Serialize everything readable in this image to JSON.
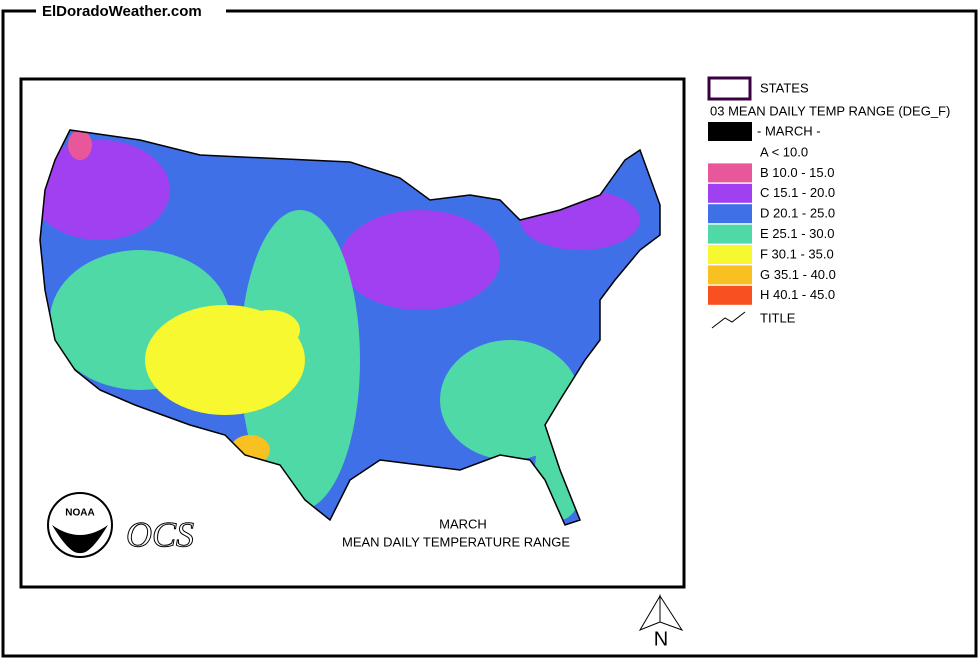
{
  "header": {
    "site": "ElDoradoWeather.com"
  },
  "legend": {
    "states": "STATES",
    "title": "03 MEAN DAILY TEMP RANGE (DEG_F)",
    "month": "- MARCH -",
    "items": [
      {
        "label": "A  < 10.0",
        "color": "#ffffff"
      },
      {
        "label": "B 10.0 - 15.0",
        "color": "#e8579a"
      },
      {
        "label": "C 15.1 - 20.0",
        "color": "#a040f0"
      },
      {
        "label": "D 20.1 - 25.0",
        "color": "#4070e8"
      },
      {
        "label": "E 25.1 - 30.0",
        "color": "#4fd9a6"
      },
      {
        "label": "F 30.1 - 35.0",
        "color": "#f8f830"
      },
      {
        "label": "G 35.1 - 40.0",
        "color": "#f8c020"
      },
      {
        "label": "H 40.1 - 45.0",
        "color": "#f85020"
      }
    ],
    "title_symbol": "TITLE"
  },
  "map": {
    "title_lines": [
      "MARCH",
      "MEAN DAILY TEMPERATURE RANGE"
    ],
    "noaa": "NOAA",
    "ocs": "OCS",
    "north": "N"
  }
}
